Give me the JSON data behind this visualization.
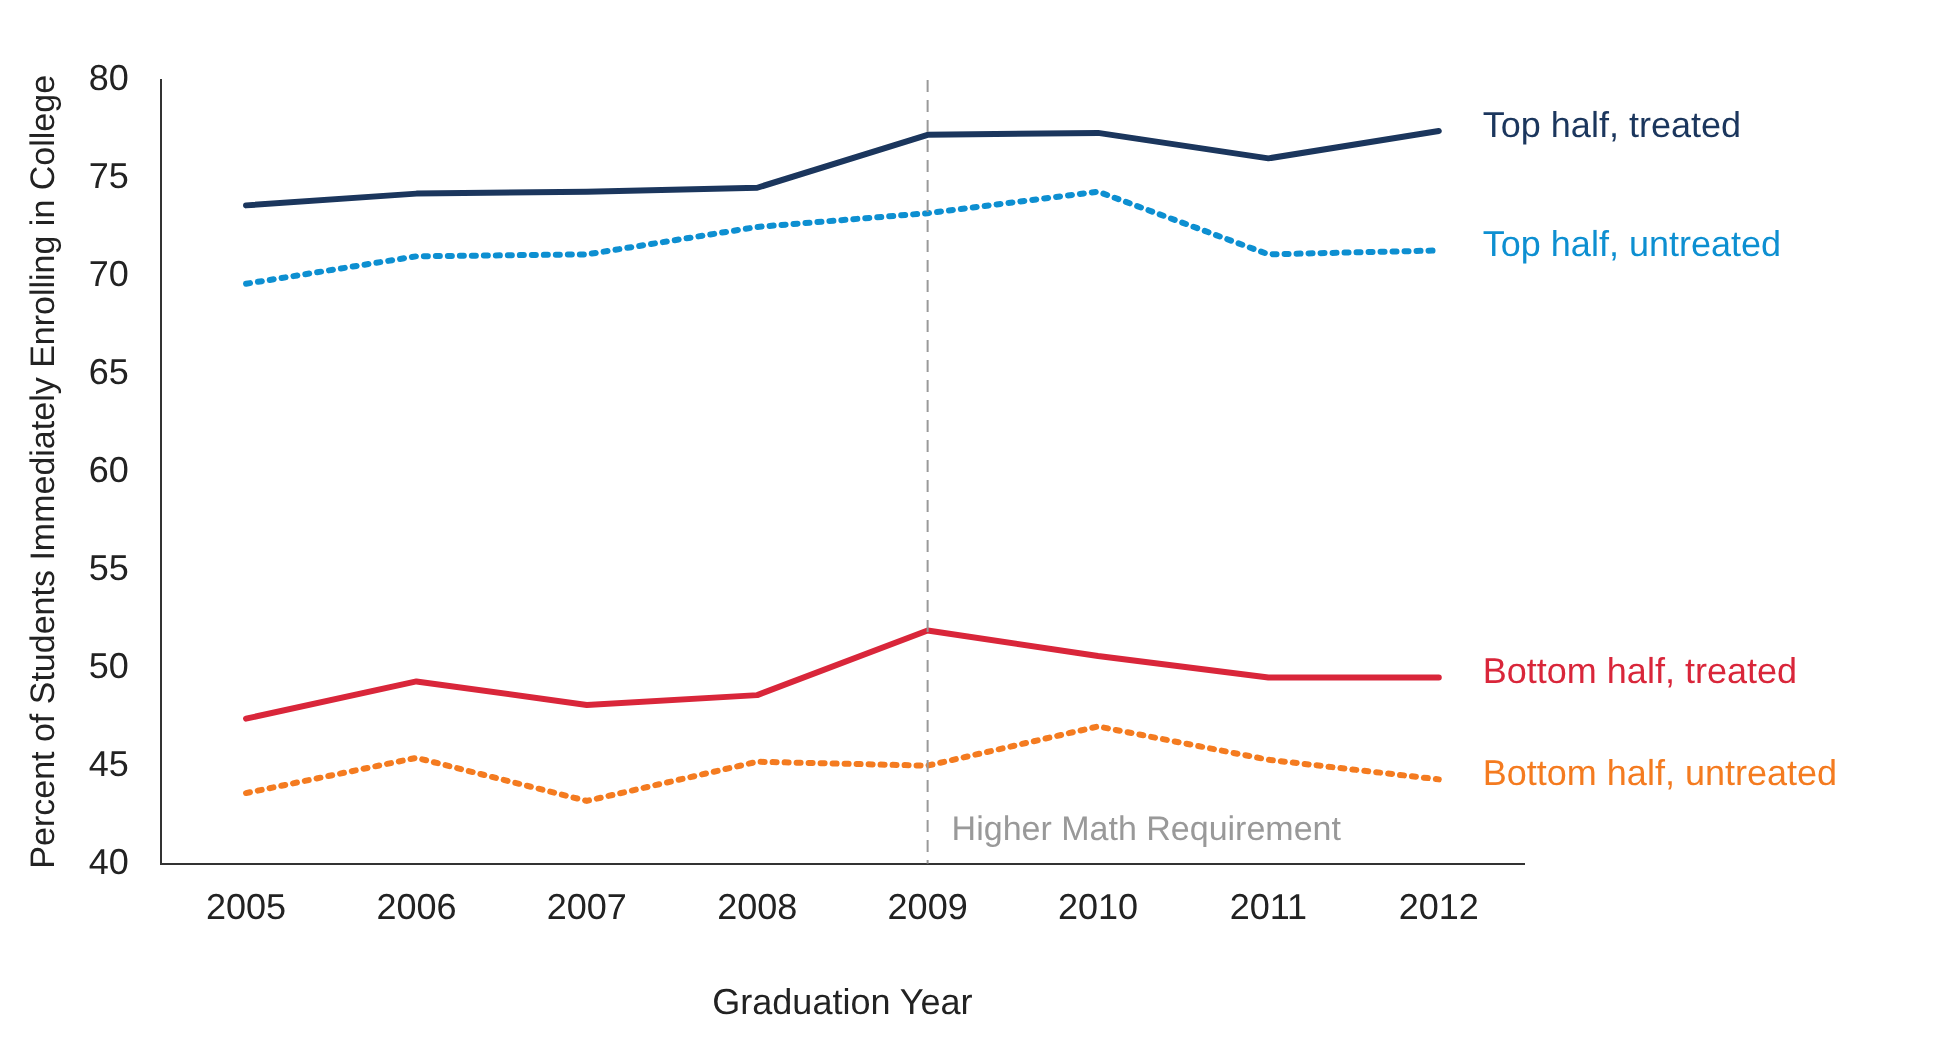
{
  "chart_data": {
    "type": "line",
    "xlabel": "Graduation Year",
    "ylabel": "Percent of Students Immediately Enrolling in College",
    "categories": [
      "2005",
      "2006",
      "2007",
      "2008",
      "2009",
      "2010",
      "2011",
      "2012"
    ],
    "series": [
      {
        "name": "Top half, treated",
        "color": "#1b365d",
        "line_style": "solid",
        "values": [
          73.6,
          74.2,
          74.3,
          74.5,
          77.2,
          77.3,
          76.0,
          77.4
        ]
      },
      {
        "name": "Top half, untreated",
        "color": "#0d8fd1",
        "line_style": "dotted",
        "values": [
          69.6,
          71.0,
          71.1,
          72.5,
          73.2,
          74.3,
          71.1,
          71.3
        ]
      },
      {
        "name": "Bottom half, treated",
        "color": "#d9263a",
        "line_style": "solid",
        "values": [
          47.4,
          49.3,
          48.1,
          48.6,
          51.9,
          50.6,
          49.5,
          49.5
        ]
      },
      {
        "name": "Bottom half, untreated",
        "color": "#f47b20",
        "line_style": "dotted",
        "values": [
          43.6,
          45.4,
          43.2,
          45.2,
          45.0,
          47.0,
          45.3,
          44.3
        ]
      }
    ],
    "ylim": [
      40,
      80
    ],
    "yticks": [
      40,
      45,
      50,
      55,
      60,
      65,
      70,
      75,
      80
    ],
    "ref_lines": [
      {
        "axis": "x",
        "value": "2009",
        "label": "Higher Math Requirement",
        "color": "#999999",
        "line_style": "dashed"
      }
    ],
    "grid": false,
    "legend": false,
    "marker": "none"
  }
}
